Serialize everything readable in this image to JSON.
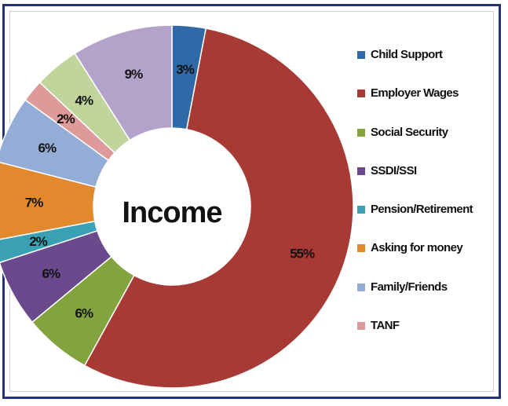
{
  "chart_data": {
    "type": "pie",
    "title": "Income",
    "slices": [
      {
        "label": "Child Support",
        "value": 3,
        "display": "3%",
        "color": "#2f69a8"
      },
      {
        "label": "Employer Wages",
        "value": 55,
        "display": "55%",
        "color": "#a83a36"
      },
      {
        "label": "Social Security",
        "value": 6,
        "display": "6%",
        "color": "#83a33f"
      },
      {
        "label": "SSDI/SSI",
        "value": 6,
        "display": "6%",
        "color": "#6a4a8c"
      },
      {
        "label": "Pension/Retirement",
        "value": 2,
        "display": "2%",
        "color": "#3aa1b5"
      },
      {
        "label": "Asking for money",
        "value": 7,
        "display": "7%",
        "color": "#e2882d"
      },
      {
        "label": "Family/Friends",
        "value": 6,
        "display": "6%",
        "color": "#94add6"
      },
      {
        "label": "TANF",
        "value": 2,
        "display": "2%",
        "color": "#dd9a99"
      },
      {
        "label": "",
        "value": 4,
        "display": "4%",
        "color": "#c0d59c"
      },
      {
        "label": "",
        "value": 9,
        "display": "9%",
        "color": "#b3a2c9"
      }
    ],
    "legend_placement": "right"
  }
}
